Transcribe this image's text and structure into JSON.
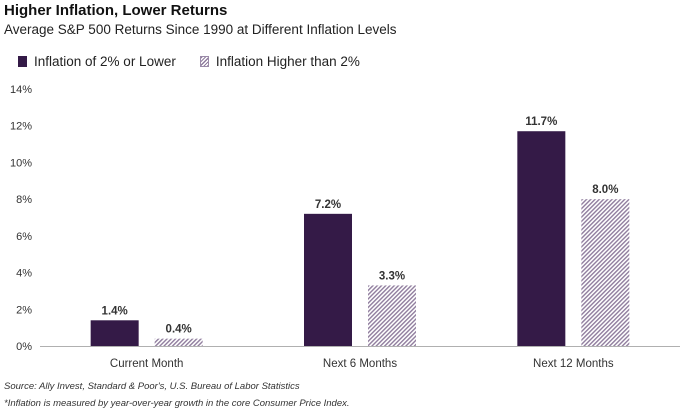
{
  "title": "Higher Inflation, Lower Returns",
  "subtitle": "Average S&P 500 Returns Since 1990 at Different Inflation Levels",
  "colors": {
    "series1": "#341a47",
    "series2_hatch": "#8f7c9d",
    "axis": "#b0b0b0"
  },
  "chart_data": {
    "type": "bar",
    "categories": [
      "Current Month",
      "Next 6 Months",
      "Next 12 Months"
    ],
    "series": [
      {
        "name": "Inflation of 2% or Lower",
        "values": [
          1.4,
          7.2,
          11.7
        ],
        "labels": [
          "1.4%",
          "7.2%",
          "11.7%"
        ]
      },
      {
        "name": "Inflation Higher than 2%",
        "values": [
          0.4,
          3.3,
          8.0
        ],
        "labels": [
          "0.4%",
          "3.3%",
          "8.0%"
        ]
      }
    ],
    "yticks": [
      "0%",
      "2%",
      "4%",
      "6%",
      "8%",
      "10%",
      "12%",
      "14%"
    ],
    "ylim": [
      0,
      14
    ],
    "grid": false,
    "legend": "top-left"
  },
  "source": "Source: Ally Invest, Standard & Poor's, U.S. Bureau of Labor Statistics",
  "footnote": "*Inflation is measured by year-over-year growth in the core Consumer Price Index."
}
